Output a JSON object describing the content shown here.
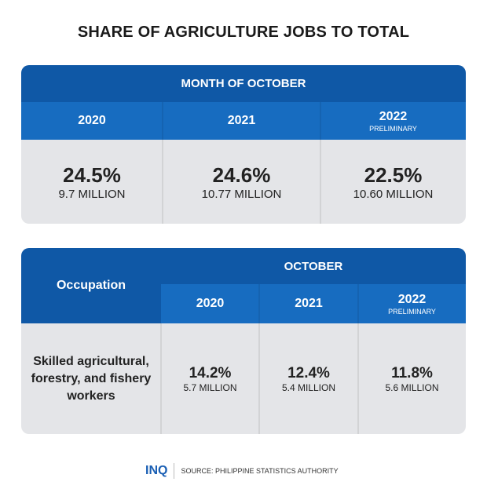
{
  "title": "SHARE OF AGRICULTURE JOBS TO TOTAL",
  "colors": {
    "header_dark": "#0f58a6",
    "header_mid": "#176cc0",
    "cell": "#e4e5e8"
  },
  "table1": {
    "header": "MONTH OF OCTOBER",
    "columns": [
      {
        "year": "2020",
        "note": "",
        "pct": "24.5%",
        "count": "9.7 MILLION"
      },
      {
        "year": "2021",
        "note": "",
        "pct": "24.6%",
        "count": "10.77 MILLION"
      },
      {
        "year": "2022",
        "note": "PRELIMINARY",
        "pct": "22.5%",
        "count": "10.60 MILLION"
      }
    ]
  },
  "table2": {
    "row_header": "Occupation",
    "header": "OCTOBER",
    "occupation": "Skilled agricultural, forestry, and fishery workers",
    "columns": [
      {
        "year": "2020",
        "note": "",
        "pct": "14.2%",
        "count": "5.7 MILLION"
      },
      {
        "year": "2021",
        "note": "",
        "pct": "12.4%",
        "count": "5.4 MILLION"
      },
      {
        "year": "2022",
        "note": "PRELIMINARY",
        "pct": "11.8%",
        "count": "5.6 MILLION"
      }
    ]
  },
  "footer": {
    "logo": "INQ",
    "source": "SOURCE: PHILIPPINE STATISTICS AUTHORITY"
  },
  "chart_data": {
    "type": "table",
    "title": "SHARE OF AGRICULTURE JOBS TO TOTAL",
    "tables": [
      {
        "header": "MONTH OF OCTOBER",
        "categories": [
          "2020",
          "2021",
          "2022 (PRELIMINARY)"
        ],
        "share_percent": [
          24.5,
          24.6,
          22.5
        ],
        "jobs_million": [
          9.7,
          10.77,
          10.6
        ]
      },
      {
        "header": "OCTOBER",
        "row": "Skilled agricultural, forestry, and fishery workers",
        "categories": [
          "2020",
          "2021",
          "2022 (PRELIMINARY)"
        ],
        "share_percent": [
          14.2,
          12.4,
          11.8
        ],
        "jobs_million": [
          5.7,
          5.4,
          5.6
        ]
      }
    ]
  }
}
